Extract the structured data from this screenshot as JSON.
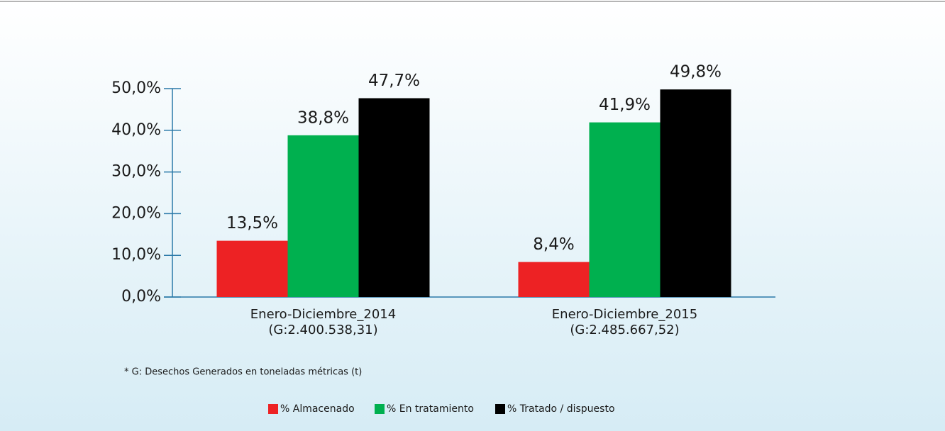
{
  "chart_data": {
    "type": "bar",
    "categories": [
      [
        "Enero-Diciembre_2014",
        "(G:2.400.538,31)"
      ],
      [
        "Enero-Diciembre_2015",
        "(G:2.485.667,52)"
      ]
    ],
    "series": [
      {
        "name": "% Almacenado",
        "color": "#ed2224",
        "values": [
          13.5,
          8.4
        ],
        "value_labels": [
          "13,5%",
          "8,4%"
        ]
      },
      {
        "name": "% En tratamiento",
        "color": "#00b04f",
        "values": [
          38.8,
          41.9
        ],
        "value_labels": [
          "38,8%",
          "41,9%"
        ]
      },
      {
        "name": "% Tratado / dispuesto",
        "color": "#000000",
        "values": [
          47.7,
          49.8
        ],
        "value_labels": [
          "47,7%",
          "49,8%"
        ]
      }
    ],
    "ylim": [
      0,
      50
    ],
    "yticks": [
      {
        "value": 0,
        "label": "0,0%"
      },
      {
        "value": 10,
        "label": "10,0%"
      },
      {
        "value": 20,
        "label": "20,0%"
      },
      {
        "value": 30,
        "label": "30,0%"
      },
      {
        "value": 40,
        "label": "40,0%"
      },
      {
        "value": 50,
        "label": "50,0%"
      }
    ],
    "note": "* G: Desechos Generados en toneladas métricas (t)",
    "legend": "bottom"
  }
}
